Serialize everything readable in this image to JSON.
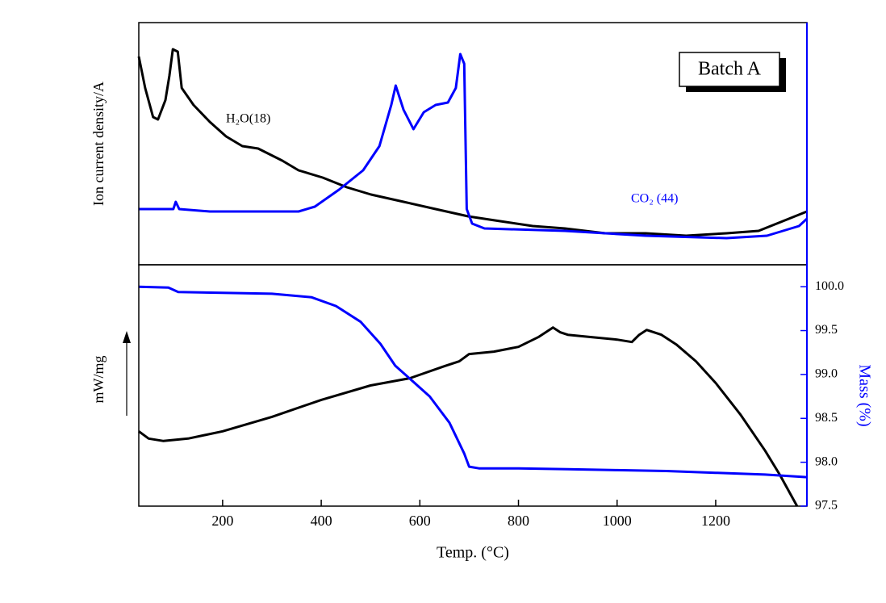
{
  "chart_data": [
    {
      "type": "line",
      "ylabel": "Ion current density/A",
      "annotation": "Batch A",
      "xlim": [
        30,
        1385
      ],
      "ylim": [
        0,
        1
      ],
      "series": [
        {
          "name": "H₂O(18)",
          "color": "#000000",
          "x": [
            30,
            43,
            59,
            69,
            84,
            92,
            99,
            109,
            117,
            141,
            174,
            207,
            240,
            272,
            321,
            354,
            403,
            452,
            501,
            567,
            632,
            698,
            763,
            829,
            894,
            976,
            1058,
            1140,
            1222,
            1287,
            1336,
            1385
          ],
          "values": [
            0.86,
            0.73,
            0.61,
            0.6,
            0.68,
            0.78,
            0.89,
            0.88,
            0.73,
            0.66,
            0.59,
            0.53,
            0.49,
            0.48,
            0.43,
            0.39,
            0.36,
            0.32,
            0.29,
            0.26,
            0.23,
            0.2,
            0.18,
            0.16,
            0.15,
            0.13,
            0.13,
            0.12,
            0.13,
            0.14,
            0.18,
            0.22
          ]
        },
        {
          "name": "CO₂ (44)",
          "color": "#0000ff",
          "x": [
            30,
            100,
            105,
            112,
            174,
            240,
            354,
            387,
            436,
            485,
            518,
            542,
            551,
            567,
            587,
            608,
            632,
            657,
            673,
            682,
            690,
            695,
            706,
            731,
            894,
            1058,
            1222,
            1304,
            1369,
            1385
          ],
          "values": [
            0.23,
            0.23,
            0.26,
            0.23,
            0.22,
            0.22,
            0.22,
            0.24,
            0.31,
            0.39,
            0.49,
            0.66,
            0.74,
            0.64,
            0.56,
            0.63,
            0.66,
            0.67,
            0.73,
            0.87,
            0.83,
            0.23,
            0.17,
            0.15,
            0.14,
            0.12,
            0.11,
            0.12,
            0.16,
            0.19
          ]
        }
      ]
    },
    {
      "type": "line",
      "xlabel": "Temp. (°C)",
      "ylabel": "mW/mg",
      "y2label": "Mass (%)",
      "xlim": [
        30,
        1385
      ],
      "xticks": [
        200,
        400,
        600,
        800,
        1000,
        1200
      ],
      "ylim": [
        0,
        1
      ],
      "y2lim": [
        97.5,
        100.25
      ],
      "y2ticks": [
        97.5,
        {
          "value": 98,
          "label": "98.0"
        },
        98.5,
        {
          "value": 99,
          "label": "99.0"
        },
        99.5,
        {
          "value": 100,
          "label": "100.0"
        }
      ],
      "series": [
        {
          "color": "#000000",
          "x": [
            30,
            50,
            80,
            130,
            200,
            300,
            400,
            500,
            580,
            650,
            680,
            700,
            750,
            800,
            840,
            870,
            885,
            900,
            950,
            1000,
            1030,
            1045,
            1060,
            1090,
            1120,
            1160,
            1200,
            1250,
            1300,
            1330,
            1365
          ],
          "values": [
            0.31,
            0.28,
            0.27,
            0.28,
            0.31,
            0.37,
            0.44,
            0.5,
            0.53,
            0.58,
            0.6,
            0.63,
            0.64,
            0.66,
            0.7,
            0.74,
            0.72,
            0.71,
            0.7,
            0.69,
            0.68,
            0.71,
            0.73,
            0.71,
            0.67,
            0.6,
            0.51,
            0.38,
            0.23,
            0.13,
            0.0
          ]
        },
        {
          "color": "#0000ff",
          "axis": "y2",
          "x": [
            30,
            90,
            110,
            200,
            300,
            380,
            430,
            480,
            520,
            550,
            580,
            620,
            660,
            690,
            700,
            720,
            800,
            900,
            1000,
            1100,
            1200,
            1300,
            1385
          ],
          "values": [
            100.0,
            99.99,
            99.94,
            99.93,
            99.92,
            99.88,
            99.78,
            99.6,
            99.35,
            99.1,
            98.95,
            98.75,
            98.45,
            98.1,
            97.95,
            97.93,
            97.93,
            97.92,
            97.91,
            97.9,
            97.88,
            97.86,
            97.83
          ]
        }
      ]
    }
  ]
}
